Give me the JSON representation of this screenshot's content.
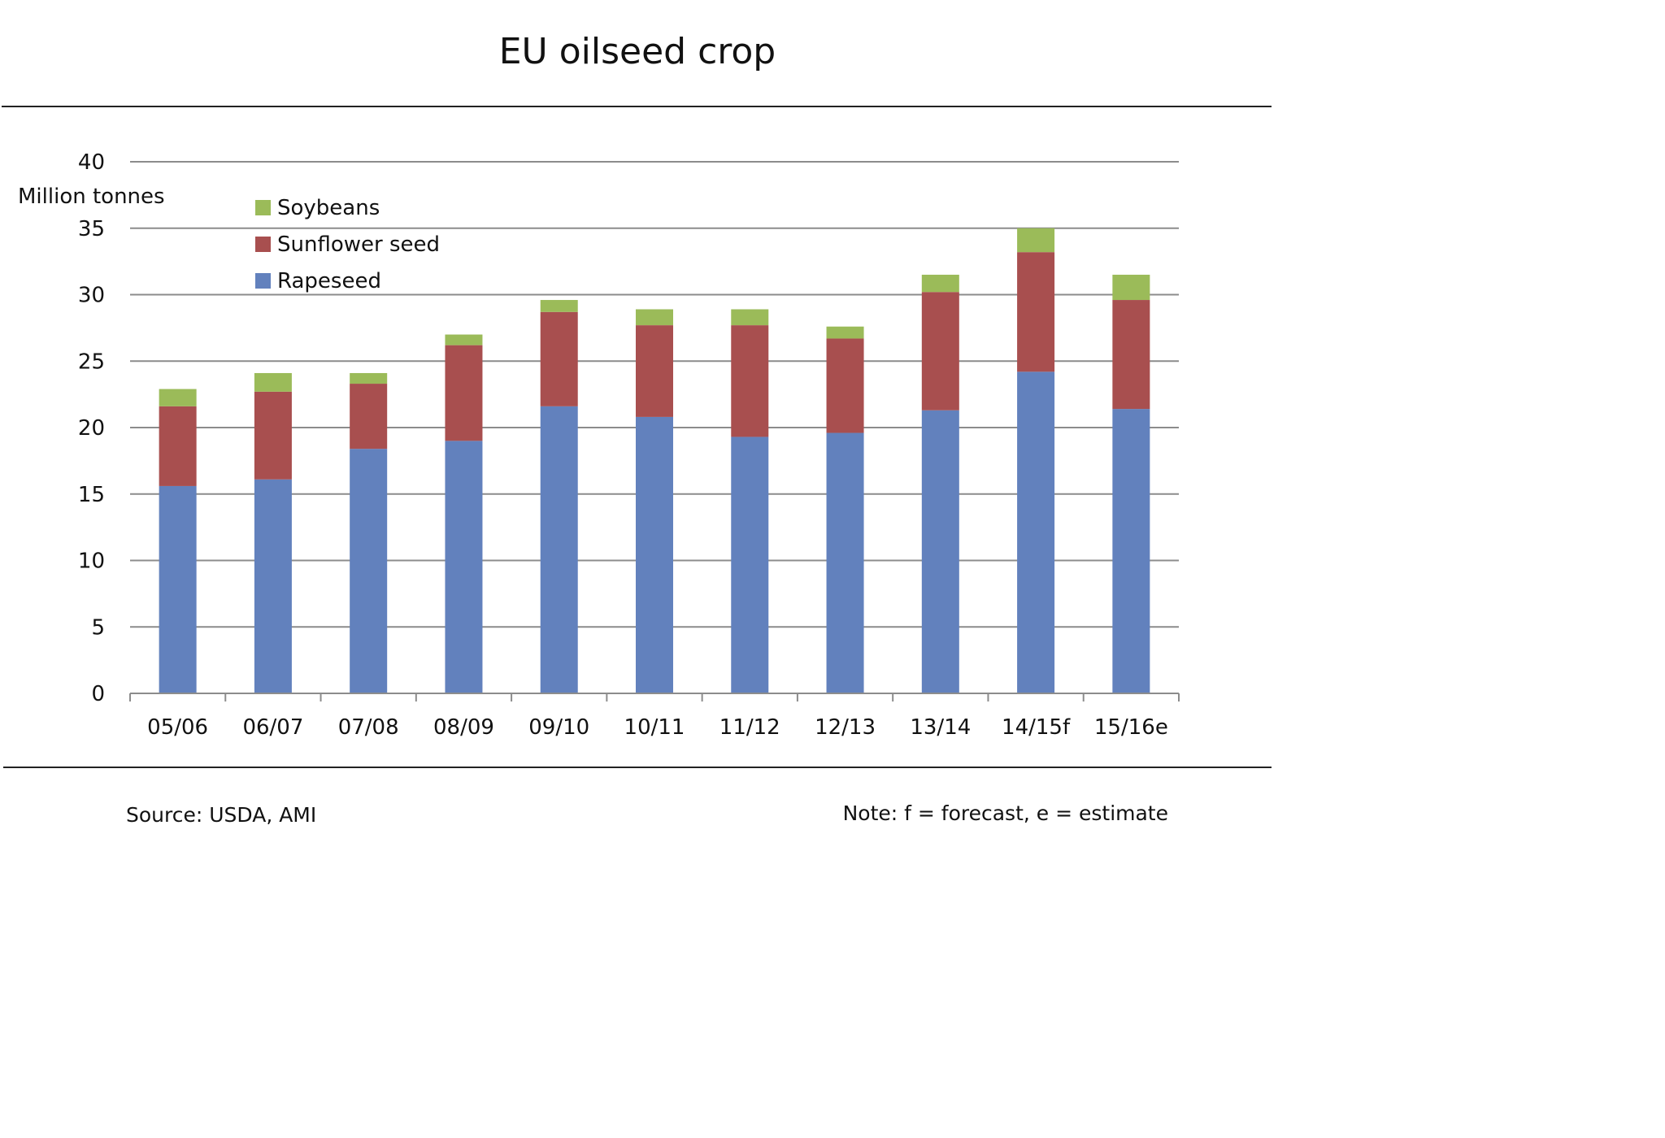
{
  "title": "EU oilseed crop",
  "footer": {
    "source": "Source: USDA, AMI",
    "note": "Note: f = forecast, e = estimate"
  },
  "colors": {
    "Rapeseed": "#6281bd",
    "Sunflower seed": "#a84f4f",
    "Soybeans": "#9bbb59",
    "grid": "#8c8c8c"
  },
  "chart_data": {
    "type": "bar",
    "stacked": true,
    "title": "EU oilseed crop",
    "ylabel": "Million tonnes",
    "xlabel": "",
    "ylim": [
      0,
      40
    ],
    "yticks": [
      0,
      5,
      10,
      15,
      20,
      25,
      30,
      35,
      40
    ],
    "grid": true,
    "legend_position": "top-left",
    "legend_order": [
      "Soybeans",
      "Sunflower seed",
      "Rapeseed"
    ],
    "categories": [
      "05/06",
      "06/07",
      "07/08",
      "08/09",
      "09/10",
      "10/11",
      "11/12",
      "12/13",
      "13/14",
      "14/15f",
      "15/16e"
    ],
    "series": [
      {
        "name": "Rapeseed",
        "values": [
          15.6,
          16.1,
          18.4,
          19.0,
          21.6,
          20.8,
          19.3,
          19.6,
          21.3,
          24.2,
          21.4
        ]
      },
      {
        "name": "Sunflower seed",
        "values": [
          6.0,
          6.6,
          4.9,
          7.2,
          7.1,
          6.9,
          8.4,
          7.1,
          8.9,
          9.0,
          8.2
        ]
      },
      {
        "name": "Soybeans",
        "values": [
          1.3,
          1.4,
          0.8,
          0.8,
          0.9,
          1.2,
          1.2,
          0.9,
          1.3,
          1.8,
          1.9
        ]
      }
    ]
  }
}
